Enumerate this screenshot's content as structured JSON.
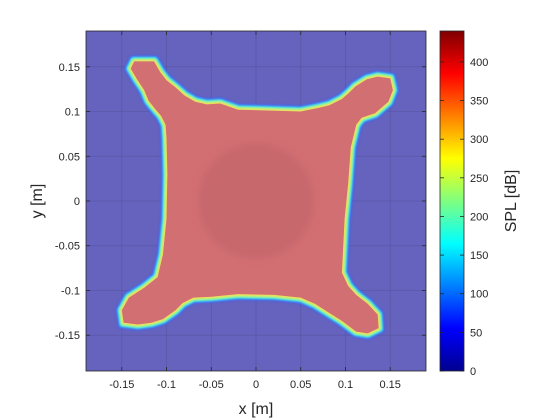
{
  "chart_data": {
    "type": "heatmap",
    "xlabel": "x [m]",
    "ylabel": "y [m]",
    "xlim": [
      -0.19,
      0.19
    ],
    "ylim": [
      -0.19,
      0.19
    ],
    "x_ticks": [
      -0.15,
      -0.1,
      -0.05,
      0,
      0.05,
      0.1,
      0.15
    ],
    "x_tick_labels": [
      "-0.15",
      "-0.1",
      "-0.05",
      "0",
      "0.05",
      "0.1",
      "0.15"
    ],
    "y_ticks": [
      0.15,
      0.1,
      0.05,
      0,
      -0.05,
      -0.1,
      -0.15
    ],
    "y_tick_labels": [
      "0.15",
      "0.1",
      "0.05",
      "0",
      "-0.05",
      "-0.1",
      "-0.15"
    ],
    "grid": true,
    "background_level_db": 0,
    "shape_level_db": 410,
    "center_disc": {
      "center": [
        0,
        0
      ],
      "radius": 0.065
    },
    "shape_outline": [
      [
        -0.136,
        0.156
      ],
      [
        -0.114,
        0.156
      ],
      [
        -0.107,
        0.144
      ],
      [
        -0.1,
        0.135
      ],
      [
        -0.09,
        0.127
      ],
      [
        -0.08,
        0.118
      ],
      [
        -0.068,
        0.111
      ],
      [
        -0.055,
        0.108
      ],
      [
        -0.04,
        0.109
      ],
      [
        -0.02,
        0.102
      ],
      [
        0.05,
        0.1
      ],
      [
        0.07,
        0.104
      ],
      [
        0.082,
        0.107
      ],
      [
        0.096,
        0.114
      ],
      [
        0.104,
        0.121
      ],
      [
        0.111,
        0.128
      ],
      [
        0.124,
        0.136
      ],
      [
        0.136,
        0.139
      ],
      [
        0.15,
        0.137
      ],
      [
        0.153,
        0.124
      ],
      [
        0.148,
        0.111
      ],
      [
        0.133,
        0.098
      ],
      [
        0.118,
        0.093
      ],
      [
        0.112,
        0.085
      ],
      [
        0.106,
        0.06
      ],
      [
        0.103,
        0.02
      ],
      [
        0.099,
        -0.02
      ],
      [
        0.097,
        -0.06
      ],
      [
        0.096,
        -0.08
      ],
      [
        0.103,
        -0.095
      ],
      [
        0.112,
        -0.105
      ],
      [
        0.125,
        -0.115
      ],
      [
        0.136,
        -0.127
      ],
      [
        0.137,
        -0.142
      ],
      [
        0.125,
        -0.148
      ],
      [
        0.112,
        -0.146
      ],
      [
        0.096,
        -0.134
      ],
      [
        0.08,
        -0.124
      ],
      [
        0.066,
        -0.115
      ],
      [
        0.05,
        -0.108
      ],
      [
        0.02,
        -0.105
      ],
      [
        -0.02,
        -0.104
      ],
      [
        -0.05,
        -0.107
      ],
      [
        -0.07,
        -0.108
      ],
      [
        -0.082,
        -0.114
      ],
      [
        -0.09,
        -0.122
      ],
      [
        -0.104,
        -0.132
      ],
      [
        -0.117,
        -0.136
      ],
      [
        -0.132,
        -0.138
      ],
      [
        -0.148,
        -0.136
      ],
      [
        -0.15,
        -0.122
      ],
      [
        -0.142,
        -0.108
      ],
      [
        -0.125,
        -0.097
      ],
      [
        -0.11,
        -0.085
      ],
      [
        -0.104,
        -0.06
      ],
      [
        -0.1,
        -0.02
      ],
      [
        -0.099,
        0.03
      ],
      [
        -0.1,
        0.07
      ],
      [
        -0.101,
        0.085
      ],
      [
        -0.106,
        0.095
      ],
      [
        -0.112,
        0.102
      ],
      [
        -0.12,
        0.112
      ],
      [
        -0.125,
        0.124
      ],
      [
        -0.133,
        0.136
      ],
      [
        -0.14,
        0.148
      ]
    ],
    "colorbar": {
      "label": "SPL [dB]",
      "range": [
        0,
        440
      ],
      "ticks": [
        0,
        50,
        100,
        150,
        200,
        250,
        300,
        350,
        400
      ],
      "colormap": "jet"
    }
  }
}
